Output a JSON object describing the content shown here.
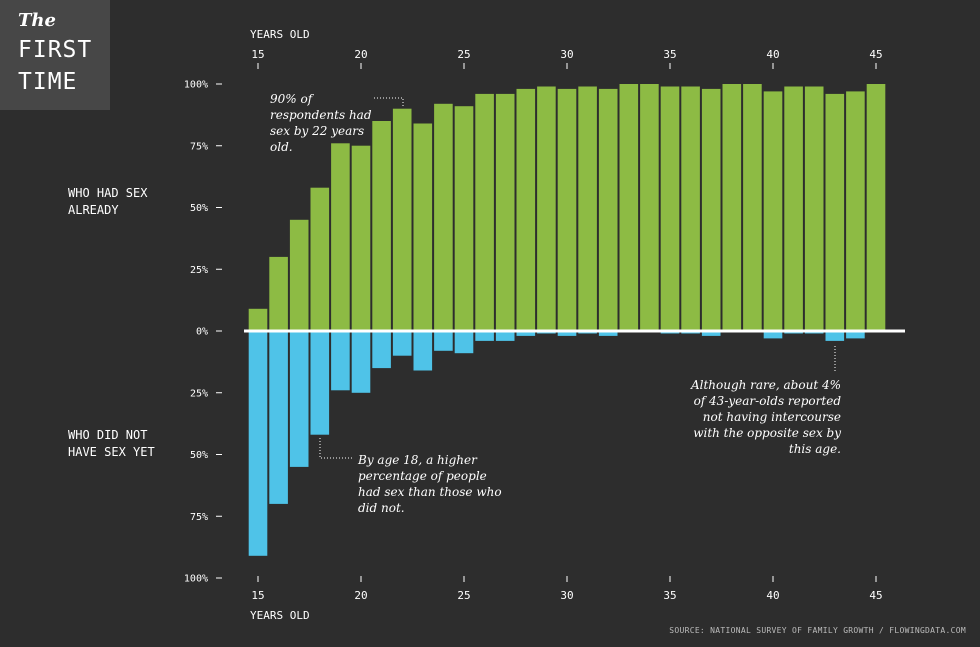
{
  "title": {
    "prefix": "The",
    "main": "FIRST TIME"
  },
  "labels": {
    "had_sex": "WHO HAD SEX ALREADY",
    "not_had_sex": "WHO DID NOT HAVE SEX YET"
  },
  "source": "SOURCE: NATIONAL SURVEY OF FAMILY GROWTH / FLOWINGDATA.COM",
  "colors": {
    "background": "#2d2d2d",
    "title_box": "#474747",
    "had_sex": "#8dbb44",
    "not_yet": "#4fc3e8",
    "zero_line": "#ffffff"
  },
  "chart_data": {
    "type": "bar",
    "xlabel": "YEARS OLD",
    "x_ticks": [
      15,
      20,
      25,
      30,
      35,
      40,
      45
    ],
    "y_tick_labels_up": [
      "100%",
      "75%",
      "50%",
      "25%"
    ],
    "y_tick_label_zero": "0%",
    "y_tick_labels_down": [
      "25%",
      "50%",
      "75%",
      "100%"
    ],
    "ylim": [
      -100,
      100
    ],
    "categories": [
      15,
      16,
      17,
      18,
      19,
      20,
      21,
      22,
      23,
      24,
      25,
      26,
      27,
      28,
      29,
      30,
      31,
      32,
      33,
      34,
      35,
      36,
      37,
      38,
      39,
      40,
      41,
      42,
      43,
      44,
      45
    ],
    "series": [
      {
        "key": "had",
        "values": [
          9,
          30,
          45,
          58,
          76,
          75,
          85,
          90,
          84,
          92,
          91,
          96,
          96,
          98,
          99,
          98,
          99,
          98,
          100,
          100,
          99,
          99,
          98,
          100,
          100,
          97,
          99,
          99,
          96,
          97,
          100
        ]
      },
      {
        "key": "not",
        "values": [
          91,
          70,
          55,
          42,
          24,
          25,
          15,
          10,
          16,
          8,
          9,
          4,
          4,
          2,
          1,
          2,
          1,
          2,
          0,
          0,
          1,
          1,
          2,
          0,
          0,
          3,
          1,
          1,
          4,
          3,
          0
        ]
      }
    ],
    "annotations": [
      {
        "lines": [
          "90% of",
          "respondents had",
          "sex by 22 years",
          "old."
        ]
      },
      {
        "lines": [
          "By age 18, a higher",
          "percentage of people",
          "had sex than those who",
          "did not."
        ]
      },
      {
        "lines": [
          "Although rare, about 4%",
          "of 43-year-olds reported",
          "not having intercourse",
          "with the opposite sex by",
          "this age."
        ]
      }
    ]
  }
}
